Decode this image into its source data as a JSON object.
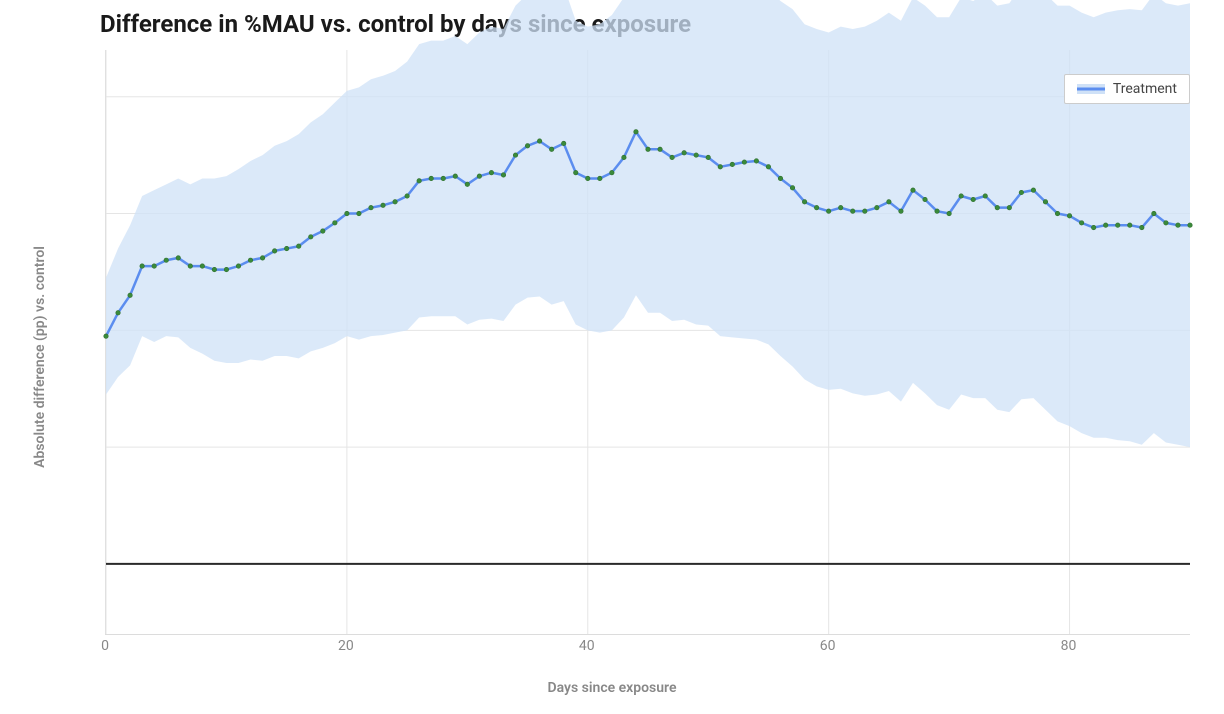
{
  "chart": {
    "type": "line+band",
    "title": "Difference in %MAU vs. control by days since exposure",
    "xlabel": "Days since exposure",
    "ylabel": "Absolute difference (pp) vs. control",
    "legend_label": "Treatment",
    "legend_position": "top-right",
    "title_fontsize": 24,
    "title_fontweight": "700",
    "axis_label_fontsize": 14,
    "axis_label_color": "#888888",
    "tick_fontsize": 14,
    "tick_color": "#888888",
    "background_color": "#ffffff",
    "grid_color": "#e5e5e5",
    "axis_border_color": "#dcdcdc",
    "zero_line_color": "#2a2a2a",
    "zero_line_width": 2,
    "line_color": "#5b8def",
    "line_width": 2.5,
    "marker_color": "#3a8a3a",
    "marker_border_color": "#2f6e2f",
    "marker_size": 4.5,
    "band_color": "#cfe1f7",
    "band_opacity": 0.75,
    "legend_bg": "#ffffff",
    "legend_border": "#cccccc",
    "xlim": [
      0,
      90
    ],
    "ylim": [
      -0.6,
      4.4
    ],
    "xtick_step": 20,
    "y_gridlines": [
      0,
      1,
      2,
      3,
      4
    ],
    "x": [
      0,
      1,
      2,
      3,
      4,
      5,
      6,
      7,
      8,
      9,
      10,
      11,
      12,
      13,
      14,
      15,
      16,
      17,
      18,
      19,
      20,
      21,
      22,
      23,
      24,
      25,
      26,
      27,
      28,
      29,
      30,
      31,
      32,
      33,
      34,
      35,
      36,
      37,
      38,
      39,
      40,
      41,
      42,
      43,
      44,
      45,
      46,
      47,
      48,
      49,
      50,
      51,
      52,
      53,
      54,
      55,
      56,
      57,
      58,
      59,
      60,
      61,
      62,
      63,
      64,
      65,
      66,
      67,
      68,
      69,
      70,
      71,
      72,
      73,
      74,
      75,
      76,
      77,
      78,
      79,
      80,
      81,
      82,
      83,
      84,
      85,
      86,
      87,
      88,
      89,
      90
    ],
    "values": [
      1.95,
      2.15,
      2.3,
      2.55,
      2.55,
      2.6,
      2.62,
      2.55,
      2.55,
      2.52,
      2.52,
      2.55,
      2.6,
      2.62,
      2.68,
      2.7,
      2.72,
      2.8,
      2.85,
      2.92,
      3.0,
      3.0,
      3.05,
      3.07,
      3.1,
      3.15,
      3.28,
      3.3,
      3.3,
      3.32,
      3.25,
      3.32,
      3.35,
      3.33,
      3.5,
      3.58,
      3.62,
      3.55,
      3.6,
      3.35,
      3.3,
      3.3,
      3.35,
      3.48,
      3.7,
      3.55,
      3.55,
      3.48,
      3.52,
      3.5,
      3.48,
      3.4,
      3.42,
      3.44,
      3.45,
      3.4,
      3.3,
      3.22,
      3.1,
      3.05,
      3.02,
      3.05,
      3.02,
      3.02,
      3.05,
      3.1,
      3.02,
      3.2,
      3.12,
      3.02,
      3.0,
      3.15,
      3.12,
      3.15,
      3.05,
      3.05,
      3.18,
      3.2,
      3.1,
      3.0,
      2.98,
      2.92,
      2.88,
      2.9,
      2.9,
      2.9,
      2.88,
      3.0,
      2.92,
      2.9,
      2.9
    ],
    "upper": [
      2.45,
      2.7,
      2.9,
      3.15,
      3.2,
      3.25,
      3.3,
      3.25,
      3.3,
      3.3,
      3.32,
      3.38,
      3.45,
      3.5,
      3.58,
      3.62,
      3.68,
      3.78,
      3.85,
      3.95,
      4.05,
      4.08,
      4.15,
      4.18,
      4.22,
      4.3,
      4.45,
      4.48,
      4.48,
      4.52,
      4.45,
      4.55,
      4.6,
      4.58,
      4.78,
      4.88,
      4.95,
      4.88,
      4.95,
      4.65,
      4.6,
      4.62,
      4.7,
      4.85,
      5.1,
      4.95,
      4.95,
      4.88,
      4.95,
      4.95,
      4.92,
      4.85,
      4.9,
      4.95,
      4.98,
      4.92,
      4.82,
      4.75,
      4.62,
      4.58,
      4.55,
      4.6,
      4.58,
      4.6,
      4.65,
      4.72,
      4.65,
      4.85,
      4.78,
      4.68,
      4.68,
      4.85,
      4.82,
      4.88,
      4.78,
      4.8,
      4.95,
      4.98,
      4.88,
      4.78,
      4.78,
      4.72,
      4.68,
      4.72,
      4.74,
      4.75,
      4.74,
      4.88,
      4.8,
      4.78,
      4.8
    ],
    "lower": [
      1.45,
      1.6,
      1.7,
      1.95,
      1.9,
      1.95,
      1.94,
      1.85,
      1.8,
      1.74,
      1.72,
      1.72,
      1.75,
      1.74,
      1.78,
      1.78,
      1.76,
      1.82,
      1.85,
      1.89,
      1.95,
      1.92,
      1.95,
      1.96,
      1.98,
      2.0,
      2.11,
      2.12,
      2.12,
      2.12,
      2.05,
      2.09,
      2.1,
      2.08,
      2.22,
      2.28,
      2.29,
      2.22,
      2.25,
      2.05,
      2.0,
      1.98,
      2.0,
      2.11,
      2.3,
      2.15,
      2.15,
      2.08,
      2.09,
      2.05,
      2.04,
      1.95,
      1.94,
      1.93,
      1.92,
      1.88,
      1.78,
      1.69,
      1.58,
      1.52,
      1.49,
      1.5,
      1.46,
      1.44,
      1.45,
      1.48,
      1.39,
      1.55,
      1.46,
      1.36,
      1.32,
      1.45,
      1.42,
      1.42,
      1.32,
      1.3,
      1.41,
      1.42,
      1.32,
      1.22,
      1.18,
      1.12,
      1.08,
      1.08,
      1.06,
      1.05,
      1.02,
      1.12,
      1.04,
      1.02,
      1.0
    ],
    "xticks": [
      0,
      20,
      40,
      60,
      80
    ]
  }
}
